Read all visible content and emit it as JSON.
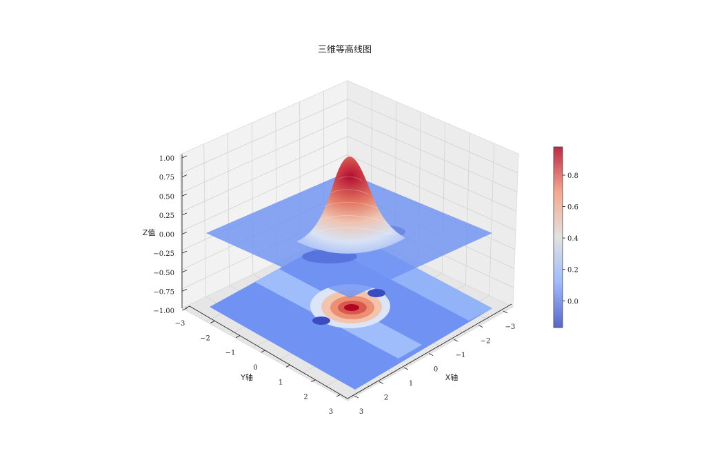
{
  "chart_data": {
    "type": "3d-surface-contour",
    "title": "三维等高线图",
    "xlabel": "X轴",
    "ylabel": "Y轴",
    "zlabel": "Z值",
    "xlim": [
      -3,
      3
    ],
    "ylim": [
      -3,
      3
    ],
    "zlim": [
      -1,
      1
    ],
    "x_ticks": [
      "−3",
      "−2",
      "−1",
      "0",
      "1",
      "2",
      "3"
    ],
    "y_ticks": [
      "−3",
      "−2",
      "−1",
      "0",
      "1",
      "2",
      "3"
    ],
    "z_ticks": [
      "−1.00",
      "−0.75",
      "−0.50",
      "−0.25",
      "0.00",
      "0.25",
      "0.50",
      "0.75",
      "1.00"
    ],
    "z_tick_values": [
      -1,
      -0.75,
      -0.5,
      -0.25,
      0,
      0.25,
      0.5,
      0.75,
      1
    ],
    "surface": {
      "peak": {
        "x": 0,
        "y": 0,
        "z": 0.98
      },
      "dips": [
        {
          "x": 1.2,
          "y": -1.2,
          "z": -0.17
        },
        {
          "x": -1.2,
          "y": 1.2,
          "z": -0.15
        }
      ],
      "baseline_z": 0
    },
    "contour_offset_z": -1,
    "colorbar": {
      "range": [
        -0.17,
        0.98
      ],
      "ticks": [
        "0.0",
        "0.2",
        "0.4",
        "0.6",
        "0.8"
      ],
      "tick_values": [
        0,
        0.2,
        0.4,
        0.6,
        0.8
      ],
      "cmap": "coolwarm"
    },
    "grid": true
  }
}
